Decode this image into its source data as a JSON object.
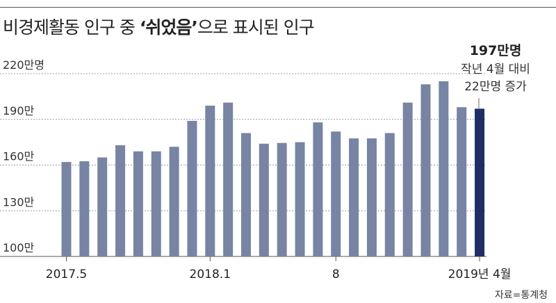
{
  "title": {
    "prefix": "비경제활동 인구 중 ",
    "highlight": "‘쉬었음’",
    "suffix": "으로 표시된 인구"
  },
  "annotation": {
    "value": "197만명",
    "line1": "작년 4월 대비",
    "line2": "22만명 증가"
  },
  "source": "자료=통계청",
  "colors": {
    "bar": "#7784a3",
    "highlight": "#1e2d66",
    "grid": "#999999"
  },
  "chart_data": {
    "type": "bar",
    "title": "비경제활동 인구 중 ‘쉬었음’으로 표시된 인구",
    "ylim": [
      100,
      220
    ],
    "yticks": [
      {
        "value": 100,
        "label": "100만"
      },
      {
        "value": 130,
        "label": "130만"
      },
      {
        "value": 160,
        "label": "160만"
      },
      {
        "value": 190,
        "label": "190만"
      },
      {
        "value": 220,
        "label": "220만명"
      }
    ],
    "categories": [
      "2017.5",
      "2017.6",
      "2017.7",
      "2017.8",
      "2017.9",
      "2017.10",
      "2017.11",
      "2017.12",
      "2018.1",
      "2018.2",
      "2018.3",
      "2018.4",
      "2018.5",
      "2018.6",
      "2018.7",
      "2018.8",
      "2018.9",
      "2018.10",
      "2018.11",
      "2018.12",
      "2019.1",
      "2019.2",
      "2019.3",
      "2019.4"
    ],
    "xtick_labels": [
      {
        "index": 0,
        "label": "2017.5"
      },
      {
        "index": 8,
        "label": "2018.1"
      },
      {
        "index": 15,
        "label": "8"
      },
      {
        "index": 23,
        "label": "2019년 4월"
      }
    ],
    "values": [
      162,
      162.5,
      165,
      173,
      169,
      169,
      172,
      189,
      199,
      201,
      181,
      174,
      174.5,
      175,
      188,
      182,
      177.5,
      177.5,
      181,
      201,
      213,
      215,
      198,
      197
    ],
    "highlight_index": 23,
    "grid": true
  }
}
